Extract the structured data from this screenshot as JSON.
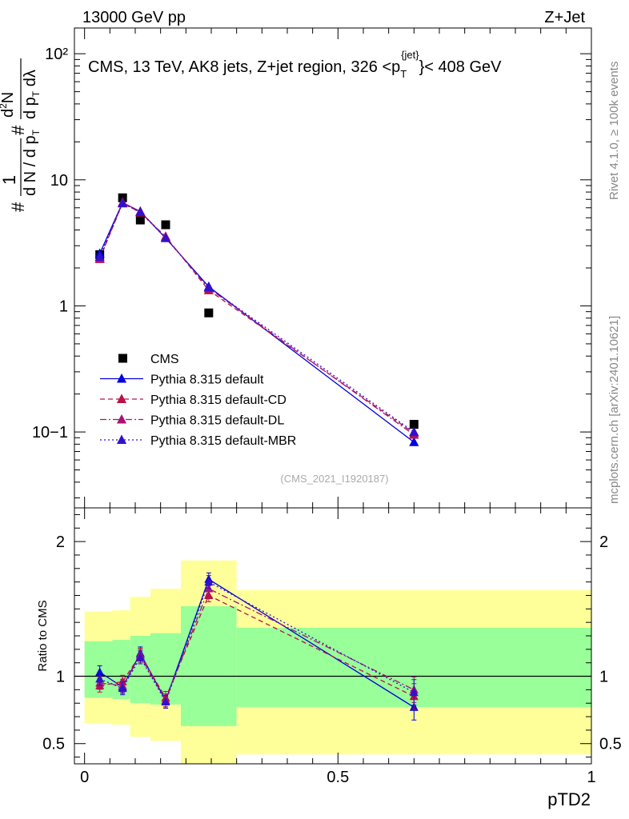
{
  "header": {
    "left": "13000 GeV pp",
    "right": "Z+Jet"
  },
  "side_labels": {
    "rivet": "Rivet 4.1.0, ≥ 100k events",
    "mcplots": "mcplots.cern.ch [arXiv:2401.10621]"
  },
  "chart_data": [
    {
      "type": "line",
      "panel": "main",
      "title_parts": {
        "prefix": "CMS, 13 TeV, AK8 jets, Z+jet region, 326 <p",
        "sub": "T",
        "sup": "{jet}",
        "suffix": "}< 408 GeV"
      },
      "ylabel": "#1/dN/dpT # d²N/dpT dλ",
      "yscale": "log",
      "ylim": [
        0.025,
        160
      ],
      "xlim": [
        -0.02,
        1.0
      ],
      "ytick_labels": {
        "1e-1": "10−1",
        "1": "1",
        "10": "10",
        "100": "10²"
      },
      "watermark": "(CMS_2021_I1920187)",
      "x": [
        0.03,
        0.075,
        0.11,
        0.16,
        0.245,
        0.65
      ],
      "series": [
        {
          "name": "CMS",
          "style": "marker",
          "color": "#000000",
          "values": [
            2.55,
            7.2,
            4.8,
            4.4,
            0.88,
            0.115
          ]
        },
        {
          "name": "Pythia 8.315 default",
          "style": "solid",
          "color": "#0000dd",
          "values": [
            2.6,
            6.6,
            5.6,
            3.45,
            1.42,
            0.083
          ]
        },
        {
          "name": "Pythia 8.315 default-CD",
          "style": "dashed",
          "color": "#bb1144",
          "values": [
            2.35,
            6.55,
            5.5,
            3.55,
            1.33,
            0.098
          ]
        },
        {
          "name": "Pythia 8.315 default-DL",
          "style": "dashdot",
          "color": "#aa1177",
          "values": [
            2.4,
            6.6,
            5.6,
            3.5,
            1.38,
            0.095
          ]
        },
        {
          "name": "Pythia 8.315 default-MBR",
          "style": "dotted",
          "color": "#3311cc",
          "values": [
            2.45,
            6.5,
            5.55,
            3.45,
            1.4,
            0.1
          ]
        }
      ]
    },
    {
      "type": "line",
      "panel": "ratio",
      "ylabel": "Ratio to CMS",
      "ylim": [
        0.35,
        2.25
      ],
      "xlim": [
        -0.02,
        1.0
      ],
      "xlabel": "pTD2",
      "ytick_labels": {
        "0.5": "0.5",
        "1": "1",
        "2": "2"
      },
      "xtick_labels": {
        "0": "0",
        "0.5": "0.5",
        "1": "1"
      },
      "x": [
        0.03,
        0.075,
        0.11,
        0.16,
        0.245,
        0.65
      ],
      "series": [
        {
          "name": "Pythia 8.315 default",
          "values": [
            1.03,
            0.92,
            1.17,
            0.82,
            1.72,
            0.77
          ]
        },
        {
          "name": "Pythia 8.315 default-CD",
          "values": [
            0.93,
            0.96,
            1.16,
            0.84,
            1.6,
            0.85
          ]
        },
        {
          "name": "Pythia 8.315 default-DL",
          "values": [
            0.95,
            0.93,
            1.15,
            0.82,
            1.65,
            0.9
          ]
        },
        {
          "name": "Pythia 8.315 default-MBR",
          "values": [
            0.98,
            0.91,
            1.14,
            0.81,
            1.7,
            0.88
          ]
        }
      ],
      "bands": [
        {
          "x0": 0.0,
          "x1": 0.055,
          "yellow": [
            0.65,
            1.48
          ],
          "green": [
            0.84,
            1.26
          ]
        },
        {
          "x0": 0.055,
          "x1": 0.09,
          "yellow": [
            0.64,
            1.49
          ],
          "green": [
            0.83,
            1.27
          ]
        },
        {
          "x0": 0.09,
          "x1": 0.13,
          "yellow": [
            0.55,
            1.59
          ],
          "green": [
            0.8,
            1.3
          ]
        },
        {
          "x0": 0.13,
          "x1": 0.19,
          "yellow": [
            0.52,
            1.65
          ],
          "green": [
            0.79,
            1.32
          ]
        },
        {
          "x0": 0.19,
          "x1": 0.3,
          "yellow": [
            0.35,
            1.86
          ],
          "green": [
            0.63,
            1.52
          ]
        },
        {
          "x0": 0.3,
          "x1": 1.0,
          "yellow": [
            0.42,
            1.64
          ],
          "green": [
            0.77,
            1.36
          ]
        }
      ]
    }
  ]
}
